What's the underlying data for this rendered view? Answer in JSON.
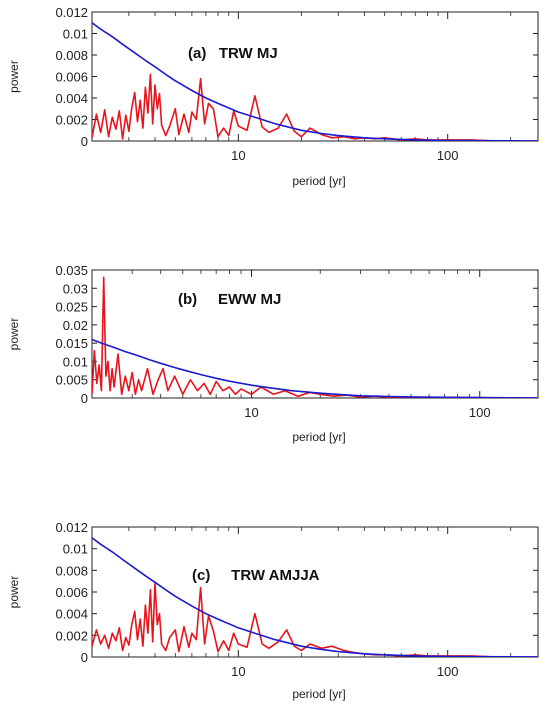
{
  "chart_data": [
    {
      "type": "line",
      "title": "(a)   TRW MJ",
      "xlabel": "period [yr]",
      "ylabel": "power",
      "x_scale": "log",
      "xlim": [
        2,
        270
      ],
      "ylim": [
        0,
        0.012
      ],
      "xticks": [
        10,
        100
      ],
      "xtick_labels": [
        "10",
        "100"
      ],
      "yticks": [
        0,
        0.002,
        0.004,
        0.006,
        0.008,
        0.01,
        0.012
      ],
      "ytick_labels": [
        "0",
        "0.002",
        "0.004",
        "0.006",
        "0.008",
        "0.01",
        "0.012"
      ],
      "grid": false,
      "series": [
        {
          "color": "#e8141b",
          "x": [
            2.0,
            2.1,
            2.2,
            2.3,
            2.4,
            2.5,
            2.6,
            2.7,
            2.8,
            2.9,
            3.0,
            3.1,
            3.2,
            3.3,
            3.4,
            3.5,
            3.6,
            3.7,
            3.8,
            3.9,
            4.0,
            4.1,
            4.2,
            4.3,
            4.5,
            4.7,
            5.0,
            5.2,
            5.5,
            5.8,
            6.0,
            6.3,
            6.6,
            6.9,
            7.2,
            7.6,
            8.0,
            8.5,
            9.0,
            9.5,
            10.0,
            11.0,
            12.0,
            13.0,
            14.0,
            15.5,
            17.0,
            18.5,
            20.0,
            22.0,
            25.0,
            28.0,
            32.0,
            36.0,
            40.0,
            45.0,
            50.0,
            60.0,
            70.0,
            80.0,
            100.0,
            130.0,
            170.0,
            220.0,
            270.0
          ],
          "y": [
            0.0003,
            0.0025,
            0.0008,
            0.0029,
            0.0004,
            0.0022,
            0.0011,
            0.0028,
            0.0002,
            0.0024,
            0.0009,
            0.0031,
            0.0045,
            0.0018,
            0.0038,
            0.0012,
            0.005,
            0.0026,
            0.0062,
            0.0016,
            0.0052,
            0.003,
            0.0044,
            0.0015,
            0.0005,
            0.0014,
            0.003,
            0.0006,
            0.0025,
            0.0008,
            0.0027,
            0.002,
            0.0058,
            0.0016,
            0.0035,
            0.003,
            0.0004,
            0.0012,
            0.0005,
            0.0028,
            0.0014,
            0.001,
            0.0042,
            0.0013,
            0.0008,
            0.0012,
            0.0025,
            0.0009,
            0.0004,
            0.0012,
            0.0006,
            0.0003,
            0.0004,
            0.0002,
            0.0003,
            0.0002,
            0.0003,
            0.0001,
            0.0002,
            0.0001,
            0.0001,
            0.0001,
            0.0,
            0.0,
            0.0
          ]
        },
        {
          "color": "#1b1bd0",
          "x": [
            2.0,
            2.2,
            2.5,
            2.8,
            3.2,
            3.6,
            4.0,
            4.5,
            5.0,
            6.0,
            7.0,
            8.0,
            10.0,
            12.0,
            15.0,
            20.0,
            25.0,
            30.0,
            40.0,
            50.0,
            70.0,
            100.0,
            150.0,
            200.0,
            270.0
          ],
          "y": [
            0.011,
            0.0104,
            0.0097,
            0.009,
            0.0082,
            0.0075,
            0.0069,
            0.0062,
            0.0056,
            0.0047,
            0.004,
            0.0035,
            0.0027,
            0.0022,
            0.0016,
            0.001,
            0.0007,
            0.0005,
            0.0003,
            0.0002,
            0.0001,
            5e-05,
            3e-05,
            2e-05,
            1e-05
          ]
        }
      ]
    },
    {
      "type": "line",
      "title": "(b)     EWW MJ",
      "xlabel": "period [yr]",
      "ylabel": "power",
      "x_scale": "log",
      "xlim": [
        2,
        180
      ],
      "ylim": [
        0,
        0.035
      ],
      "xticks": [
        10,
        100
      ],
      "xtick_labels": [
        "10",
        "100"
      ],
      "yticks": [
        0,
        0.005,
        0.01,
        0.015,
        0.02,
        0.025,
        0.03,
        0.035
      ],
      "ytick_labels": [
        "0",
        "0.005",
        "0.01",
        "0.015",
        "0.02",
        "0.025",
        "0.03",
        "0.035"
      ],
      "grid": false,
      "series": [
        {
          "color": "#e8141b",
          "x": [
            2.0,
            2.05,
            2.1,
            2.15,
            2.2,
            2.25,
            2.3,
            2.35,
            2.4,
            2.45,
            2.5,
            2.6,
            2.7,
            2.8,
            2.9,
            3.0,
            3.1,
            3.2,
            3.3,
            3.5,
            3.7,
            3.9,
            4.1,
            4.3,
            4.6,
            5.0,
            5.4,
            5.8,
            6.2,
            6.6,
            7.0,
            7.5,
            8.0,
            8.5,
            9.0,
            10.0,
            11.0,
            12.5,
            14.0,
            16.0,
            18.0,
            20.0,
            23.0,
            26.0,
            30.0,
            35.0,
            40.0,
            50.0,
            60.0,
            80.0,
            100.0,
            130.0,
            180.0
          ],
          "y": [
            0.001,
            0.013,
            0.004,
            0.009,
            0.002,
            0.033,
            0.006,
            0.01,
            0.002,
            0.008,
            0.003,
            0.012,
            0.001,
            0.006,
            0.002,
            0.007,
            0.001,
            0.005,
            0.002,
            0.008,
            0.001,
            0.005,
            0.008,
            0.002,
            0.006,
            0.001,
            0.005,
            0.002,
            0.004,
            0.001,
            0.0045,
            0.002,
            0.003,
            0.001,
            0.0025,
            0.001,
            0.003,
            0.001,
            0.002,
            0.0005,
            0.0015,
            0.001,
            0.0005,
            0.0008,
            0.0003,
            0.0005,
            0.0002,
            0.0002,
            0.0001,
            0.0001,
            0.0001,
            0.0,
            0.0
          ]
        },
        {
          "color": "#1b1bd0",
          "x": [
            2.0,
            2.2,
            2.5,
            2.8,
            3.2,
            3.6,
            4.0,
            4.5,
            5.0,
            6.0,
            7.0,
            8.0,
            10.0,
            12.0,
            15.0,
            20.0,
            25.0,
            30.0,
            40.0,
            50.0,
            70.0,
            100.0,
            140.0,
            180.0
          ],
          "y": [
            0.016,
            0.015,
            0.0138,
            0.0127,
            0.0115,
            0.0104,
            0.0095,
            0.0085,
            0.0077,
            0.0064,
            0.0054,
            0.0046,
            0.0035,
            0.0028,
            0.002,
            0.0013,
            0.0009,
            0.0006,
            0.0004,
            0.0003,
            0.0002,
            0.0001,
            5e-05,
            3e-05
          ]
        }
      ]
    },
    {
      "type": "line",
      "title": "(c)     TRW AMJJA",
      "xlabel": "period [yr]",
      "ylabel": "power",
      "x_scale": "log",
      "xlim": [
        2,
        270
      ],
      "ylim": [
        0,
        0.012
      ],
      "xticks": [
        10,
        100
      ],
      "xtick_labels": [
        "10",
        "100"
      ],
      "yticks": [
        0,
        0.002,
        0.004,
        0.006,
        0.008,
        0.01,
        0.012
      ],
      "ytick_labels": [
        "0",
        "0.002",
        "0.004",
        "0.006",
        "0.008",
        "0.01",
        "0.012"
      ],
      "grid": false,
      "series": [
        {
          "color": "#e8141b",
          "x": [
            2.0,
            2.1,
            2.2,
            2.3,
            2.4,
            2.5,
            2.6,
            2.7,
            2.8,
            2.9,
            3.0,
            3.1,
            3.2,
            3.3,
            3.4,
            3.5,
            3.6,
            3.7,
            3.8,
            3.9,
            4.0,
            4.1,
            4.2,
            4.3,
            4.5,
            4.7,
            5.0,
            5.2,
            5.5,
            5.8,
            6.0,
            6.3,
            6.6,
            6.9,
            7.2,
            7.6,
            8.0,
            8.5,
            9.0,
            9.5,
            10.0,
            11.0,
            12.0,
            13.0,
            14.0,
            15.5,
            17.0,
            18.5,
            20.0,
            22.0,
            25.0,
            28.0,
            32.0,
            36.0,
            40.0,
            45.0,
            50.0,
            60.0,
            70.0,
            80.0,
            100.0,
            130.0,
            170.0,
            220.0,
            270.0
          ],
          "y": [
            0.001,
            0.0025,
            0.0012,
            0.002,
            0.0008,
            0.0022,
            0.0015,
            0.0027,
            0.0006,
            0.0018,
            0.0011,
            0.003,
            0.0042,
            0.0016,
            0.0035,
            0.001,
            0.0048,
            0.0022,
            0.0062,
            0.0014,
            0.0068,
            0.003,
            0.004,
            0.0012,
            0.0006,
            0.0018,
            0.0025,
            0.0005,
            0.0028,
            0.0009,
            0.0022,
            0.0016,
            0.0064,
            0.0012,
            0.0038,
            0.0024,
            0.0005,
            0.0015,
            0.0006,
            0.0022,
            0.0012,
            0.0009,
            0.004,
            0.0012,
            0.0008,
            0.0014,
            0.0025,
            0.001,
            0.0006,
            0.0012,
            0.0008,
            0.001,
            0.0006,
            0.0004,
            0.0003,
            0.0002,
            0.0002,
            0.0001,
            0.0002,
            0.0001,
            0.0001,
            0.0001,
            0.0,
            0.0,
            0.0
          ]
        },
        {
          "color": "#1b1bd0",
          "x": [
            2.0,
            2.2,
            2.5,
            2.8,
            3.2,
            3.6,
            4.0,
            4.5,
            5.0,
            6.0,
            7.0,
            8.0,
            10.0,
            12.0,
            15.0,
            20.0,
            25.0,
            30.0,
            40.0,
            50.0,
            70.0,
            100.0,
            150.0,
            200.0,
            270.0
          ],
          "y": [
            0.011,
            0.0104,
            0.0097,
            0.009,
            0.0082,
            0.0075,
            0.0069,
            0.0062,
            0.0056,
            0.0047,
            0.004,
            0.0035,
            0.0027,
            0.0022,
            0.0016,
            0.001,
            0.0007,
            0.0005,
            0.0003,
            0.0002,
            0.0001,
            5e-05,
            3e-05,
            2e-05,
            1e-05
          ]
        }
      ]
    }
  ]
}
